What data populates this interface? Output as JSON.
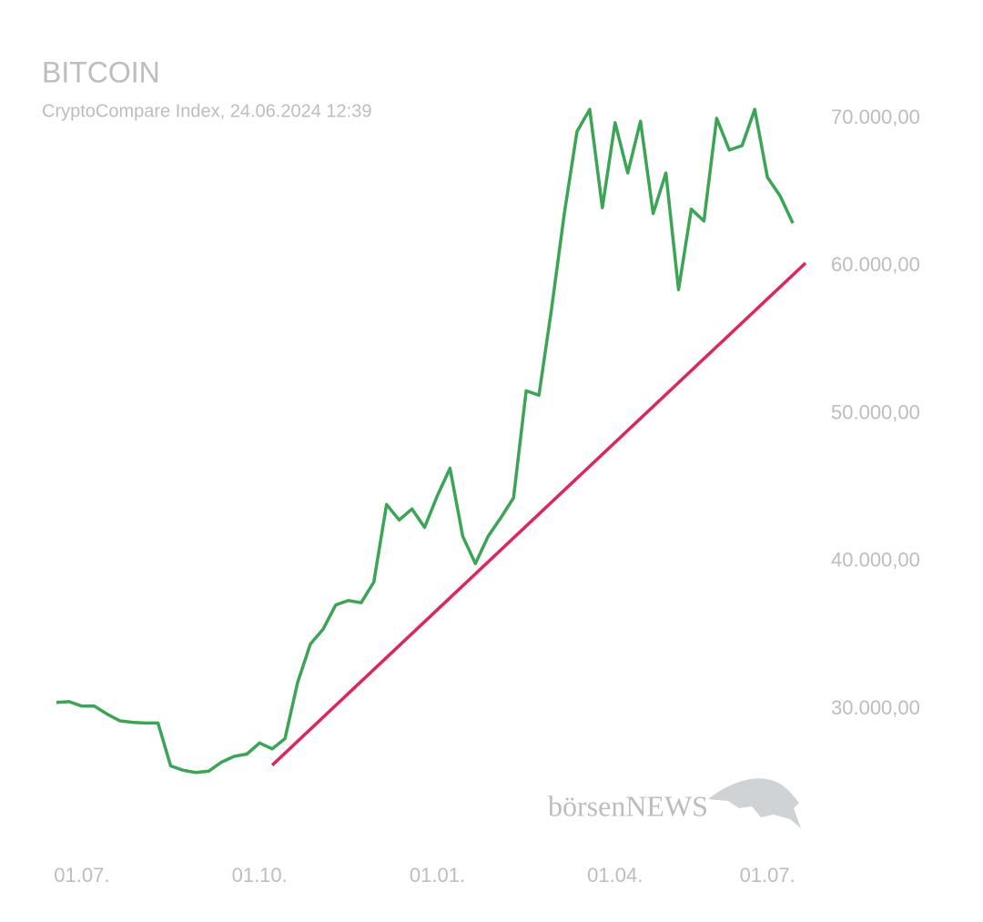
{
  "chart_data": {
    "type": "line",
    "title": "BITCOIN",
    "subtitle": "CryptoCompare Index, 24.06.2024 12:39",
    "watermark": "börsenNEWS",
    "categories": [
      null,
      null,
      "01.07.",
      null,
      null,
      null,
      null,
      null,
      null,
      null,
      null,
      null,
      null,
      null,
      null,
      null,
      "01.10.",
      null,
      null,
      null,
      null,
      null,
      null,
      null,
      null,
      null,
      null,
      null,
      null,
      null,
      "01.01.",
      null,
      null,
      null,
      null,
      null,
      null,
      null,
      null,
      null,
      null,
      null,
      null,
      null,
      "01.04.",
      null,
      null,
      null,
      null,
      null,
      null,
      null,
      null,
      null,
      null,
      null,
      "01.07.",
      null,
      null,
      null
    ],
    "series": [
      {
        "name": "Bitcoin",
        "color": "#3aa655",
        "values": [
          30450,
          30500,
          30200,
          30200,
          29650,
          29200,
          29100,
          29050,
          29050,
          26150,
          25850,
          25700,
          25800,
          26400,
          26800,
          26950,
          27700,
          27300,
          28000,
          31800,
          34400,
          35400,
          37050,
          37350,
          37200,
          38600,
          43850,
          42800,
          43550,
          42300,
          44450,
          46300,
          41700,
          39850,
          41700,
          42950,
          44300,
          51550,
          51250,
          57100,
          63550,
          69100,
          70600,
          63950,
          69700,
          66300,
          69800,
          63550,
          66300,
          58400,
          63850,
          63050,
          70000,
          67850,
          68150,
          70600,
          66000,
          64750,
          62900,
          null
        ]
      },
      {
        "name": "Trend",
        "color": "#e0245e",
        "values": [
          null,
          null,
          null,
          null,
          null,
          null,
          null,
          null,
          null,
          null,
          null,
          null,
          null,
          null,
          null,
          null,
          null,
          26200,
          null,
          null,
          null,
          null,
          null,
          null,
          null,
          null,
          null,
          null,
          null,
          null,
          null,
          null,
          null,
          null,
          null,
          null,
          null,
          null,
          null,
          null,
          null,
          null,
          null,
          null,
          null,
          null,
          null,
          null,
          null,
          null,
          null,
          null,
          null,
          null,
          null,
          null,
          null,
          null,
          null,
          60200
        ]
      }
    ],
    "ylim": [
      23500,
      73000
    ],
    "yticks": [
      {
        "value": 30000,
        "label": "30.000,00"
      },
      {
        "value": 40000,
        "label": "40.000,00"
      },
      {
        "value": 50000,
        "label": "50.000,00"
      },
      {
        "value": 60000,
        "label": "60.000,00"
      },
      {
        "value": 70000,
        "label": "70.000,00"
      }
    ],
    "grid": false
  }
}
